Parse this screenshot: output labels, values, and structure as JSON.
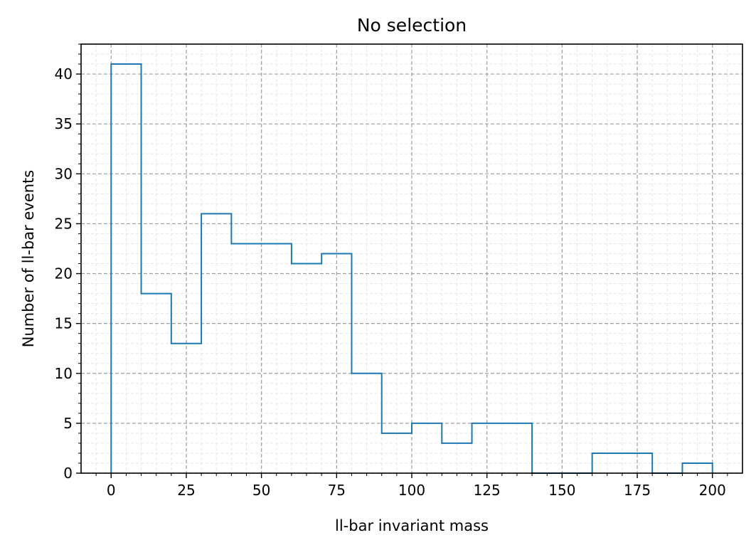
{
  "chart_data": {
    "type": "histogram",
    "title": "No selection",
    "xlabel": "ll-bar invariant mass",
    "ylabel": "Number of ll-bar events",
    "xlim": [
      -10,
      210
    ],
    "ylim": [
      0,
      43
    ],
    "x_ticks": [
      0,
      25,
      50,
      75,
      100,
      125,
      150,
      175,
      200
    ],
    "y_ticks": [
      0,
      5,
      10,
      15,
      20,
      25,
      30,
      35,
      40
    ],
    "grid": true,
    "minor_grid": true,
    "bin_edges": [
      0,
      10,
      20,
      30,
      40,
      50,
      60,
      70,
      80,
      90,
      100,
      110,
      120,
      130,
      140,
      150,
      160,
      170,
      180,
      190,
      200
    ],
    "counts": [
      41,
      18,
      13,
      26,
      23,
      23,
      21,
      22,
      10,
      4,
      5,
      3,
      5,
      5,
      0,
      0,
      2,
      2,
      0,
      1
    ],
    "color": "#1f77b4"
  }
}
